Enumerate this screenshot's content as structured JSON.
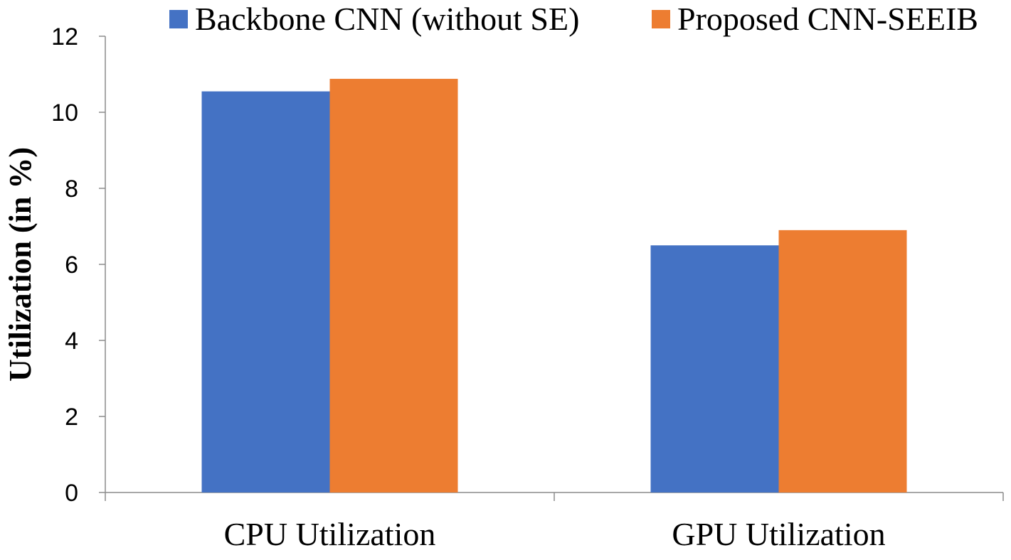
{
  "chart_data": {
    "type": "bar",
    "title": "",
    "xlabel": "",
    "ylabel": "Utilization (in %)",
    "categories": [
      "CPU Utilization",
      "GPU Utilization"
    ],
    "series": [
      {
        "name": "Backbone CNN (without SE)",
        "values": [
          10.55,
          6.5
        ],
        "color": "#4472C4"
      },
      {
        "name": "Proposed CNN-SEEIB",
        "values": [
          10.88,
          6.9
        ],
        "color": "#ED7D31"
      }
    ],
    "ylim": [
      0,
      12
    ],
    "yticks": [
      "0",
      "2",
      "4",
      "6",
      "8",
      "10",
      "12"
    ],
    "grid": false,
    "legend_position": "top"
  }
}
